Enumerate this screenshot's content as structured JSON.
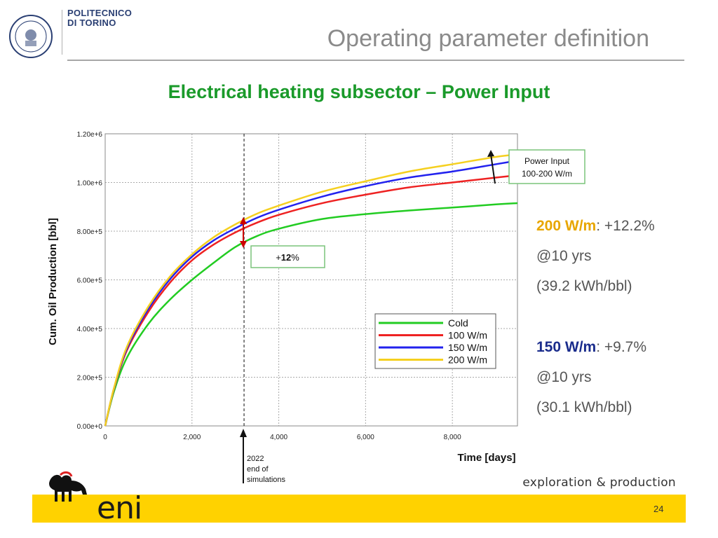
{
  "header": {
    "university_line1": "POLITECNICO",
    "university_line2": "DI TORINO",
    "title": "Operating parameter definition"
  },
  "slide": {
    "subtitle": "Electrical heating subsector – Power Input"
  },
  "annotations": {
    "power_input_line1": "Power Input",
    "power_input_line2": "100-200 W/m",
    "increase_prefix": "+",
    "increase_value": "12",
    "increase_suffix": "%",
    "sim_end_line1": "2022",
    "sim_end_line2": "end of",
    "sim_end_line3": "simulations"
  },
  "side_notes": {
    "p200_label": "200 W/m",
    "p200_value": ": +12.2%",
    "p200_period": "@10 yrs",
    "p200_energy": "(39.2 kWh/bbl)",
    "p150_label": "150 W/m",
    "p150_value": ": +9.7%",
    "p150_period": "@10 yrs",
    "p150_energy": "(30.1 kWh/bbl)"
  },
  "footer": {
    "division": "exploration & production",
    "brand": "eni",
    "page_number": "24"
  },
  "colors": {
    "green": "#1a9a2a",
    "gold": "#e8a600",
    "navy": "#1a2c8c",
    "footer_yellow": "#ffd200"
  },
  "chart_data": {
    "type": "line",
    "xlabel": "Time [days]",
    "ylabel": "Cum. Oil Production [bbl]",
    "xlim": [
      0,
      9500
    ],
    "ylim": [
      0,
      1200000
    ],
    "x_ticks": [
      0,
      2000,
      4000,
      6000,
      8000
    ],
    "x_tick_labels": [
      "0",
      "2,000",
      "4,000",
      "6,000",
      "8,000"
    ],
    "y_ticks": [
      0,
      200000,
      400000,
      600000,
      800000,
      1000000,
      1200000
    ],
    "y_tick_labels": [
      "0.00e+0",
      "2.00e+5",
      "4.00e+5",
      "6.00e+5",
      "8.00e+5",
      "1.00e+6",
      "1.20e+6"
    ],
    "grid": true,
    "legend_position": "lower-right",
    "x": [
      0,
      200,
      500,
      1000,
      1500,
      2000,
      2500,
      3000,
      3500,
      4000,
      5000,
      6000,
      7000,
      8000,
      9000,
      9500
    ],
    "series": [
      {
        "name": "Cold",
        "color": "#22cc22",
        "values": [
          0,
          140000,
          280000,
          420000,
          520000,
          600000,
          670000,
          735000,
          780000,
          810000,
          850000,
          870000,
          885000,
          897000,
          910000,
          915000
        ]
      },
      {
        "name": "100 W/m",
        "color": "#ee2222",
        "values": [
          0,
          150000,
          310000,
          470000,
          590000,
          680000,
          745000,
          795000,
          835000,
          867000,
          915000,
          950000,
          980000,
          1000000,
          1020000,
          1030000
        ]
      },
      {
        "name": "150 W/m",
        "color": "#2222ee",
        "values": [
          0,
          152000,
          318000,
          482000,
          604000,
          695000,
          762000,
          812000,
          855000,
          888000,
          942000,
          985000,
          1020000,
          1045000,
          1075000,
          1090000
        ]
      },
      {
        "name": "200 W/m",
        "color": "#f5d020",
        "values": [
          0,
          154000,
          325000,
          492000,
          615000,
          705000,
          775000,
          828000,
          872000,
          905000,
          962000,
          1005000,
          1045000,
          1075000,
          1105000,
          1115000
        ]
      }
    ],
    "vertical_marker_x": 3200
  }
}
